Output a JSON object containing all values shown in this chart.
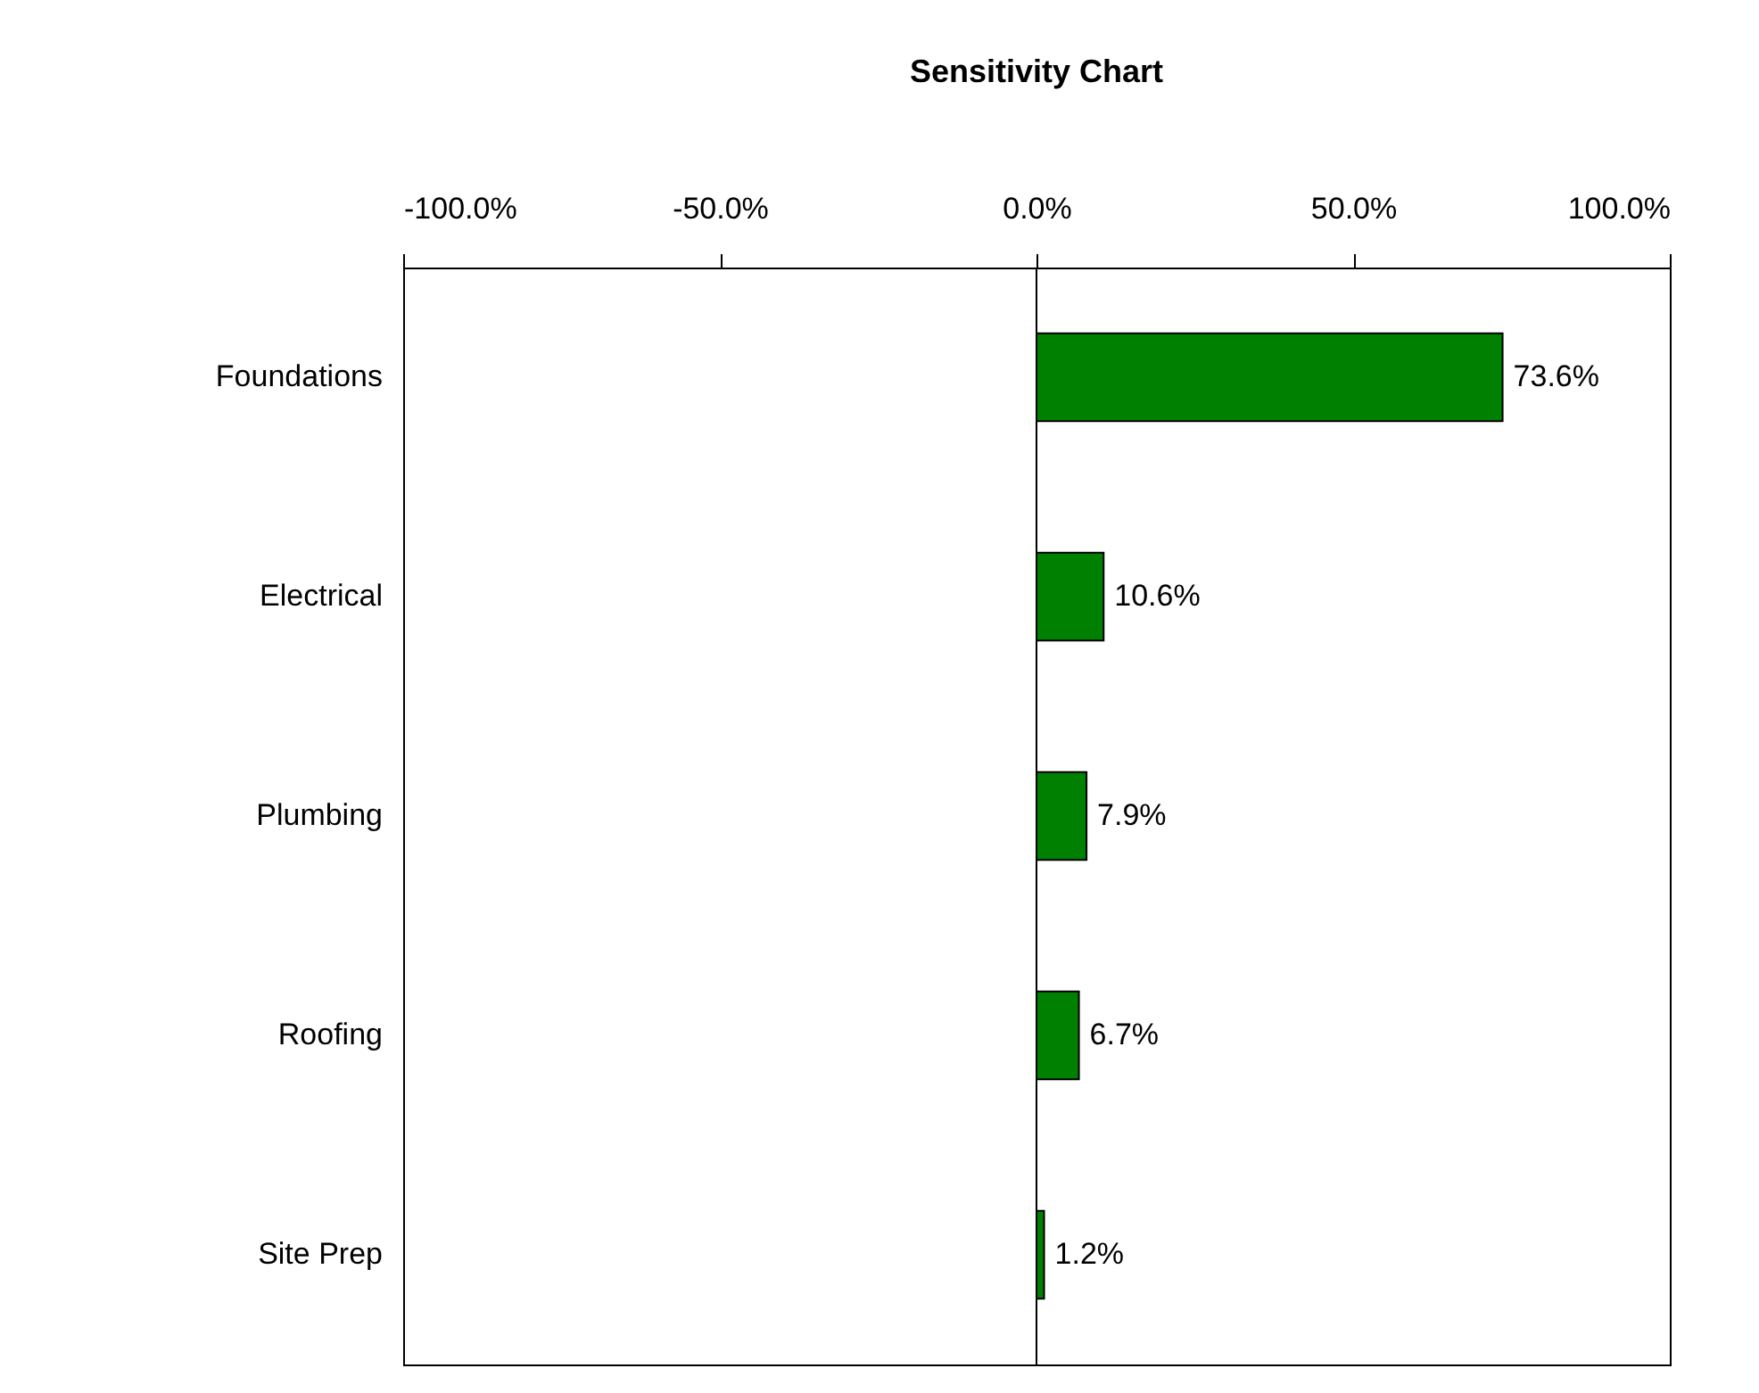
{
  "chart_data": {
    "type": "bar",
    "title": "Sensitivity Chart",
    "orientation": "horizontal",
    "categories": [
      "Foundations",
      "Electrical",
      "Plumbing",
      "Roofing",
      "Site Prep"
    ],
    "values": [
      73.6,
      10.6,
      7.9,
      6.7,
      1.2
    ],
    "value_labels": [
      "73.6%",
      "10.6%",
      "7.9%",
      "6.7%",
      "1.2%"
    ],
    "color": "#008000",
    "xlim": [
      -100,
      100
    ],
    "xticks": [
      {
        "value": -100,
        "label": "-100.0%"
      },
      {
        "value": -50,
        "label": "-50.0%"
      },
      {
        "value": 0,
        "label": "0.0%"
      },
      {
        "value": 50,
        "label": "50.0%"
      },
      {
        "value": 100,
        "label": "100.0%"
      }
    ],
    "ref_lines": [
      {
        "axis": "x",
        "value": 0,
        "color": "#000000"
      }
    ],
    "grid": false
  }
}
